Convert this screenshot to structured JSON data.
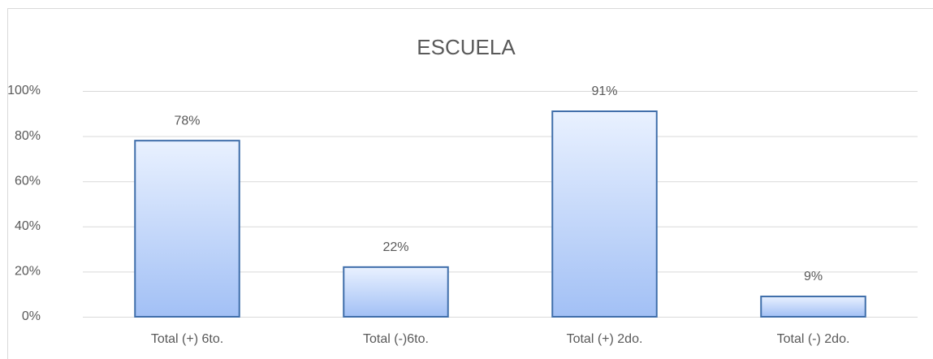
{
  "chart_data": {
    "type": "bar",
    "title": "ESCUELA",
    "categories": [
      "Total (+) 6to.",
      "Total (-)6to.",
      "Total (+) 2do.",
      "Total (-) 2do."
    ],
    "values": [
      78,
      22,
      91,
      9
    ],
    "value_labels": [
      "78%",
      "22%",
      "91%",
      "9%"
    ],
    "color": "#3f6eaa",
    "ylim": [
      0,
      100
    ],
    "yticks": [
      {
        "value": 0,
        "label": "0%"
      },
      {
        "value": 20,
        "label": "20%"
      },
      {
        "value": 40,
        "label": "40%"
      },
      {
        "value": 60,
        "label": "60%"
      },
      {
        "value": 80,
        "label": "80%"
      },
      {
        "value": 100,
        "label": "100%"
      }
    ],
    "grid": true
  }
}
